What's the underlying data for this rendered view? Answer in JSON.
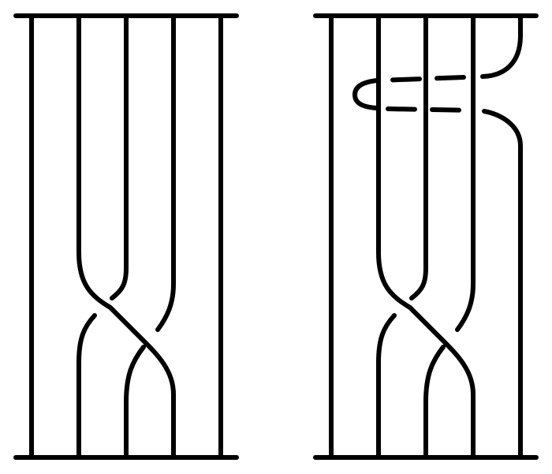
{
  "diagram": {
    "stroke_color": "#000000",
    "background_color": "#ffffff",
    "panels": [
      {
        "id": "left",
        "strand_count": 5,
        "crossings": 3
      },
      {
        "id": "right",
        "strand_count": 6,
        "crossings": 3,
        "dashed_loop": true
      }
    ]
  }
}
